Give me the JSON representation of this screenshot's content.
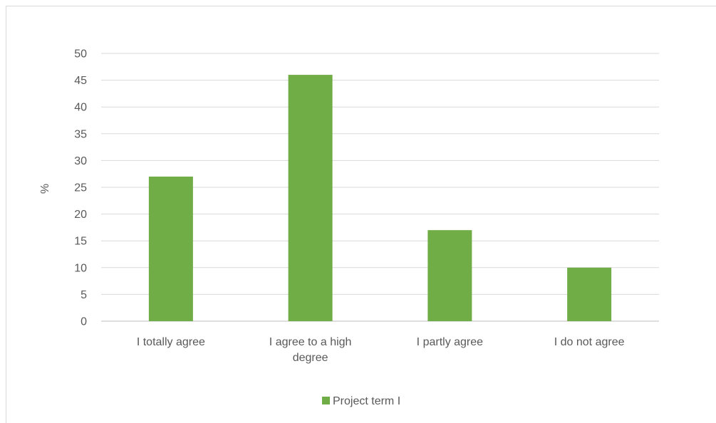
{
  "chart_data": {
    "type": "bar",
    "title": "",
    "xlabel": "",
    "ylabel": "%",
    "ylim": [
      0,
      50
    ],
    "yticks": [
      0,
      5,
      10,
      15,
      20,
      25,
      30,
      35,
      40,
      45,
      50
    ],
    "grid": true,
    "legend_position": "bottom",
    "categories": [
      [
        "I totally agree"
      ],
      [
        "I agree to a high",
        "degree"
      ],
      [
        "I partly agree"
      ],
      [
        "I do not agree"
      ]
    ],
    "series": [
      {
        "name": "Project term I",
        "color": "#70ad47",
        "values": [
          27,
          46,
          17,
          10
        ]
      }
    ]
  }
}
